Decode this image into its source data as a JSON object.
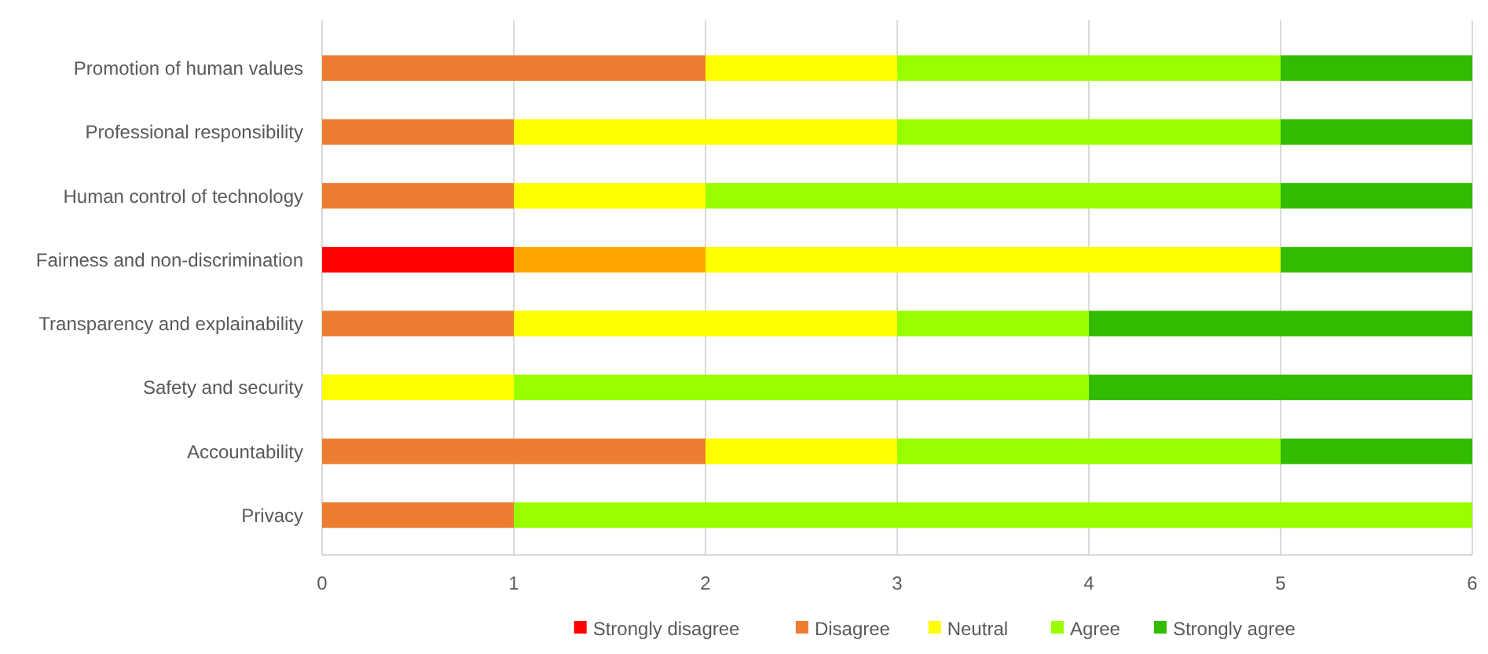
{
  "chart_data": {
    "type": "bar",
    "orientation": "horizontal",
    "stacked": true,
    "categories": [
      "Promotion of human values",
      "Professional responsibility",
      "Human control of technology",
      "Fairness and non-discrimination",
      "Transparency and explainability",
      "Safety and security",
      "Accountability",
      "Privacy"
    ],
    "series": [
      {
        "name": "Strongly disagree",
        "color": "#ff0000",
        "values": [
          0,
          0,
          0,
          1,
          0,
          0,
          0,
          0
        ]
      },
      {
        "name": "Disagree",
        "color": "#ed7d31",
        "colors": [
          "#ed7d31",
          "#ed7d31",
          "#ed7d31",
          "#ffa500",
          "#ed7d31",
          null,
          "#ed7d31",
          "#ed7d31"
        ],
        "values": [
          2,
          1,
          1,
          1,
          1,
          0,
          2,
          1
        ]
      },
      {
        "name": "Neutral",
        "color": "#ffff00",
        "values": [
          1,
          2,
          1,
          3,
          2,
          1,
          1,
          0
        ]
      },
      {
        "name": "Agree",
        "color": "#99ff00",
        "values": [
          2,
          2,
          3,
          0,
          1,
          3,
          2,
          5
        ]
      },
      {
        "name": "Strongly agree",
        "color": "#33bb00",
        "values": [
          1,
          1,
          1,
          1,
          2,
          2,
          1,
          0
        ]
      }
    ],
    "xlim": [
      0,
      6
    ],
    "xticks": [
      0,
      1,
      2,
      3,
      4,
      5,
      6
    ],
    "grid": "x",
    "legend": "bottom"
  }
}
